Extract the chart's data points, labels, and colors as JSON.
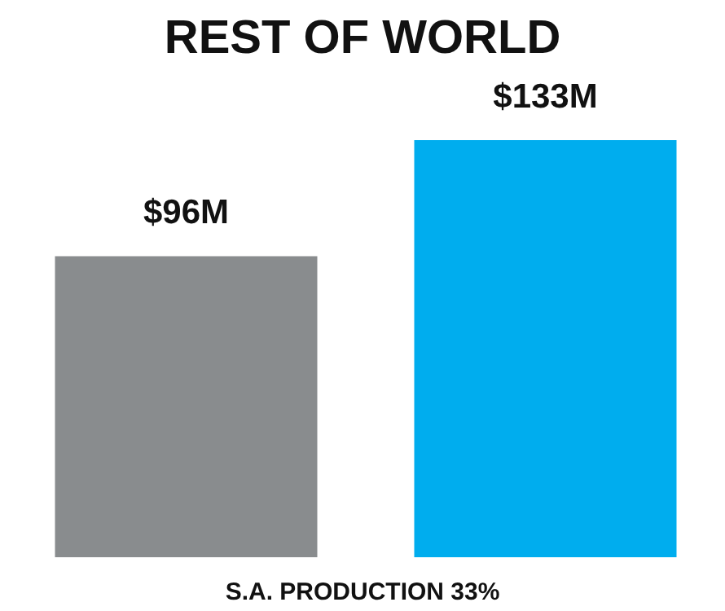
{
  "chart_data": {
    "type": "bar",
    "title": "REST OF WORLD",
    "categories": [
      null,
      null
    ],
    "values": [
      96,
      133
    ],
    "colors": [
      "#898c8e",
      "#00adee"
    ],
    "value_labels": [
      "$96M",
      "$133M"
    ],
    "annotations": [
      "S.A. PRODUCTION 33%"
    ]
  }
}
